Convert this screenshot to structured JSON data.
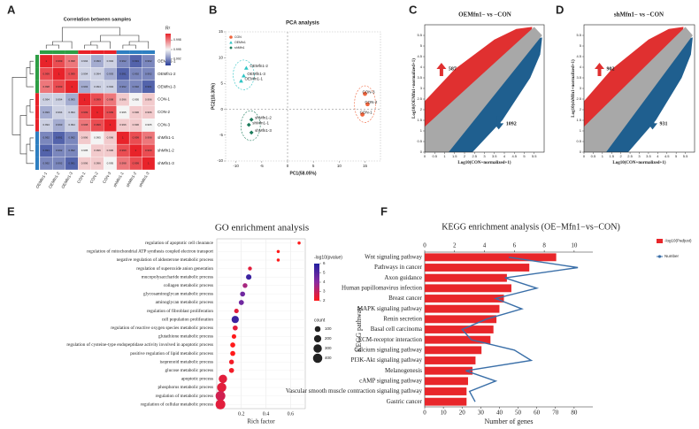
{
  "chart_data": [
    {
      "type": "heatmap",
      "panel": "A",
      "title": "Correlation between samples",
      "labels": [
        "OEMfn1-1",
        "OEMfn1-2",
        "OEMfn1-3",
        "CON-1",
        "CON-2",
        "CON-3",
        "shMfn1-1",
        "shMfn1-2",
        "shMfn1-3"
      ],
      "values": [
        [
          1,
          0.999,
          0.998,
          0.994,
          0.993,
          0.994,
          0.992,
          0.991,
          0.992
        ],
        [
          0.999,
          1,
          0.999,
          0.994,
          0.994,
          0.993,
          0.991,
          0.992,
          0.992
        ],
        [
          0.998,
          0.999,
          1,
          0.993,
          0.994,
          0.994,
          0.992,
          0.992,
          0.991
        ],
        [
          0.994,
          0.994,
          0.993,
          1,
          0.999,
          0.998,
          0.996,
          0.995,
          0.996
        ],
        [
          0.993,
          0.994,
          0.994,
          0.999,
          1,
          0.999,
          0.995,
          0.996,
          0.996
        ],
        [
          0.994,
          0.993,
          0.994,
          0.998,
          0.999,
          1,
          0.996,
          0.996,
          0.995
        ],
        [
          0.992,
          0.991,
          0.992,
          0.996,
          0.995,
          0.996,
          1,
          0.999,
          0.998
        ],
        [
          0.991,
          0.992,
          0.992,
          0.995,
          0.996,
          0.996,
          0.999,
          1,
          0.999
        ],
        [
          0.992,
          0.992,
          0.991,
          0.996,
          0.996,
          0.995,
          0.998,
          0.999,
          1
        ]
      ],
      "legend_title": "R²",
      "color_lim": [
        0.99,
        1
      ],
      "color_ticks": [
        0.992,
        0.995,
        0.998
      ],
      "colors": [
        "#2b3f99",
        "#f4f4f4",
        "#e8232a"
      ],
      "group_colors": [
        "#2e9e45",
        "#e8232a",
        "#2e7fc1"
      ]
    },
    {
      "type": "scatter",
      "panel": "B",
      "title": "PCA analysis",
      "xlabel": "PC1(58.05%)",
      "ylabel": "PC2(18.30%)",
      "xlim": [
        -12,
        18
      ],
      "ylim": [
        -10,
        15
      ],
      "xticks": [
        -10,
        -5,
        0,
        5,
        10,
        15
      ],
      "yticks": [
        -10,
        -5,
        0,
        5,
        10,
        15
      ],
      "series": [
        {
          "name": "CON",
          "color": "#f0643c",
          "marker": "circle",
          "x": [
            15,
            15.5,
            14.5
          ],
          "y": [
            3,
            1,
            -1
          ],
          "labels": [
            "CON-3",
            "CON-2",
            "CON-1"
          ]
        },
        {
          "name": "OEMfn1",
          "color": "#2ec4c4",
          "marker": "triangle",
          "x": [
            -8,
            -8.5,
            -9
          ],
          "y": [
            8,
            6.5,
            5.5
          ],
          "labels": [
            "OEMfn1-2",
            "OEMfn1-3",
            "OEMfn1-1"
          ]
        },
        {
          "name": "shMfn1",
          "color": "#1a7a5a",
          "marker": "diamond",
          "x": [
            -7,
            -7.5,
            -7
          ],
          "y": [
            -2,
            -3,
            -4.5
          ],
          "labels": [
            "shMfn1-2",
            "shMfn1-1",
            "shMfn1-3"
          ]
        }
      ]
    },
    {
      "type": "density",
      "panel": "C",
      "title": "OEMfn1− vs −CON",
      "xlabel": "Log10(CON+normalized+1)",
      "ylabel": "Log10(OEMfn1+normalized+1)",
      "xlim": [
        0,
        6
      ],
      "ylim": [
        0,
        6
      ],
      "xticks": [
        0,
        0.5,
        1,
        1.5,
        2,
        2.5,
        3,
        3.5,
        4,
        4.5,
        5,
        5.5
      ],
      "yticks": [
        0,
        0.5,
        1,
        1.5,
        2,
        2.5,
        3,
        3.5,
        4,
        4.5,
        5,
        5.5
      ],
      "up": {
        "value": 587,
        "color": "#e03030"
      },
      "down": {
        "value": 1092,
        "color": "#1f5f8f"
      }
    },
    {
      "type": "density",
      "panel": "D",
      "title": "shMfn1− vs −CON",
      "xlabel": "Log10(CON+normalized+1)",
      "ylabel": "Log10(shMfn1+normalized+1)",
      "xlim": [
        0,
        6
      ],
      "ylim": [
        0,
        6
      ],
      "xticks": [
        0,
        0.5,
        1,
        1.5,
        2,
        2.5,
        3,
        3.5,
        4,
        4.5,
        5,
        5.5
      ],
      "yticks": [
        0,
        0.5,
        1,
        1.5,
        2,
        2.5,
        3,
        3.5,
        4,
        4.5,
        5,
        5.5
      ],
      "up": {
        "value": 902,
        "color": "#e03030"
      },
      "down": {
        "value": 931,
        "color": "#1f5f8f"
      }
    },
    {
      "type": "dot",
      "panel": "E",
      "title": "GO enrichment analysis",
      "xlabel": "Rich factor",
      "categories": [
        "regulation of apoptotic cell clearance",
        "regulation of mitochondrial ATP synthesis coupled electron transport",
        "negative regulation of aldosterone metabolic process",
        "regulation of superoxide anion generation",
        "mucopolysaccharide metabolic process",
        "collagen metabolic process",
        "glycosaminoglycan metabolic process",
        "aminoglycan metabolic process",
        "regulation of fibroblast proliferation",
        "cell population proliferation",
        "regulation of reactive oxygen species metabolic process",
        "glutathione metabolic process",
        "regulation of cysteine-type endopeptidase activity involved in apoptotic process",
        "positive regulation of lipid metabolic process",
        "isoprenoid metabolic process",
        "glucose metabolic process",
        "apoptotic process",
        "phosphorus metabolic process",
        "regulation of metabolic process",
        "regulation of cellular metabolic process"
      ],
      "values": [
        0.67,
        0.5,
        0.5,
        0.27,
        0.26,
        0.23,
        0.21,
        0.2,
        0.16,
        0.15,
        0.15,
        0.14,
        0.13,
        0.13,
        0.12,
        0.12,
        0.05,
        0.04,
        0.03,
        0.03
      ],
      "pvalues": [
        2,
        2,
        2,
        2.5,
        5.5,
        3.5,
        4.5,
        4.5,
        2.5,
        5.5,
        2.5,
        2,
        2,
        2,
        2.2,
        2.2,
        2.5,
        2.5,
        2.8,
        2.5
      ],
      "counts": [
        5,
        5,
        5,
        20,
        80,
        50,
        60,
        65,
        40,
        200,
        60,
        40,
        60,
        60,
        50,
        60,
        300,
        400,
        450,
        450
      ],
      "xlim": [
        0,
        0.72
      ],
      "xticks": [
        0.2,
        0.4,
        0.6
      ],
      "color_title": "-log10(pvalue)",
      "color_lim": [
        2,
        6
      ],
      "color_ticks": [
        2,
        3,
        4,
        5,
        6
      ],
      "colors": [
        "#ff1a1a",
        "#8a2aa0",
        "#2020a0"
      ],
      "size_title": "count",
      "size_ticks": [
        100,
        200,
        300,
        400
      ]
    },
    {
      "type": "bar",
      "panel": "F",
      "title": "KEGG enrichment analysis (OE−Mfn1−vs−CON)",
      "xlabel": "Number of genes",
      "ylabel": "KEGG pathway",
      "categories": [
        "Wnt signaling pathway",
        "Pathways in cancer",
        "Axon guidance",
        "Human papillomavirus infection",
        "Breast cancer",
        "MAPK signaling pathway",
        "Renin secretion",
        "Basal cell carcinoma",
        "ECM-receptor interaction",
        "Calcium signaling pathway",
        "PI3K-Akt signaling pathway",
        "Melanogenesis",
        "cAMP signaling pathway",
        "Vascular smooth muscle contraction signaling pathway",
        "Gastric cancer"
      ],
      "series": [
        {
          "name": "-log10(Padjust)",
          "color": "#e8262a",
          "axis": "x2",
          "values": [
            8.8,
            7,
            5.5,
            5.8,
            5.3,
            5,
            4.8,
            4.6,
            4.4,
            3.8,
            3.4,
            3.2,
            2.9,
            2.8,
            2.8
          ]
        },
        {
          "name": "Number",
          "color": "#3a6fa8",
          "values": [
            45,
            82,
            43,
            60,
            38,
            52,
            33,
            20,
            25,
            48,
            57,
            22,
            38,
            24,
            27
          ]
        }
      ],
      "xlim": [
        0,
        90
      ],
      "xticks": [
        0,
        10,
        20,
        30,
        40,
        50,
        60,
        70,
        80
      ],
      "x2lim": [
        0,
        11.25
      ],
      "x2ticks": [
        0,
        2,
        4,
        6,
        8,
        10
      ]
    }
  ]
}
